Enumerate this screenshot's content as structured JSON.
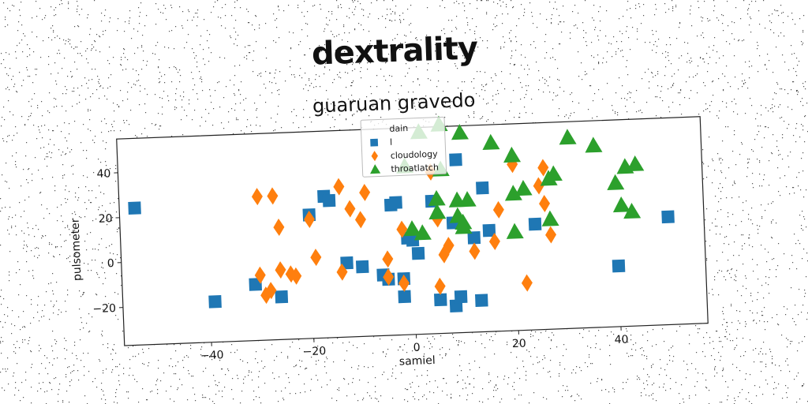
{
  "header": {
    "title": "dextrality"
  },
  "colors": {
    "dain": "#cccccc",
    "l": "#1f77b4",
    "cloudology": "#ff7f0e",
    "throatlatch": "#2ca02c"
  },
  "chart_data": {
    "type": "scatter",
    "title": "guaruan gravedo",
    "xlabel": "samiel",
    "ylabel": "pulsometer",
    "xlim": [
      -57,
      57
    ],
    "ylim": [
      -37,
      55
    ],
    "xticks": [
      -40,
      -20,
      0,
      20,
      40
    ],
    "yticks": [
      -20,
      0,
      20,
      40
    ],
    "xtick_labels": [
      "−40",
      "−20",
      "0",
      "20",
      "40"
    ],
    "ytick_labels": [
      "−20",
      "0",
      "20",
      "40"
    ],
    "grid": false,
    "legend_position": "top-center",
    "series": [
      {
        "name": "dain",
        "marker": "point",
        "x": [],
        "y": []
      },
      {
        "name": "l",
        "marker": "square",
        "x": [
          -54,
          -39,
          -31,
          -26,
          -20,
          -17,
          -16,
          -13,
          -10,
          -6,
          -5,
          -4,
          -3,
          -2,
          -2,
          -1,
          0,
          1,
          4,
          5,
          8,
          8,
          9,
          9,
          12,
          13,
          14,
          15,
          24,
          40,
          50
        ],
        "y": [
          24,
          -19,
          -12,
          -18,
          18,
          26,
          24,
          -4,
          -6,
          -10,
          -12,
          21,
          22,
          -20,
          -12,
          6,
          5,
          -1,
          22,
          -22,
          -25,
          12,
          40,
          -21,
          5,
          -23,
          27,
          8,
          10,
          -10,
          11
        ]
      },
      {
        "name": "cloudology",
        "marker": "diamond",
        "x": [
          -30,
          -30,
          -29,
          -28,
          -27,
          -26,
          -26,
          -24,
          -23,
          -20,
          -19,
          -14,
          -14,
          -12,
          -10,
          -9,
          -5,
          -5,
          -2,
          -2,
          4,
          5,
          5,
          6,
          7,
          12,
          16,
          17,
          20,
          22,
          25,
          26,
          26,
          27
        ],
        "y": [
          27,
          -8,
          -17,
          -15,
          27,
          13,
          -6,
          -8,
          -9,
          16,
          -1,
          30,
          -8,
          20,
          15,
          27,
          -3,
          -11,
          -14,
          10,
          35,
          -16,
          14,
          -2,
          2,
          -1,
          3,
          17,
          37,
          -16,
          27,
          19,
          35,
          5
        ]
      },
      {
        "name": "throatlatch",
        "marker": "triangle",
        "x": [
          -1,
          0,
          2,
          2,
          5,
          5,
          6,
          6,
          9,
          9,
          10,
          10,
          10,
          11,
          16,
          20,
          20,
          20,
          22,
          27,
          27,
          28,
          31,
          36,
          40,
          41,
          42,
          43,
          44
        ],
        "y": [
          38,
          10,
          8,
          53,
          23,
          17,
          36,
          56,
          15,
          22,
          10,
          12,
          52,
          22,
          47,
          24,
          41,
          7,
          26,
          12,
          30,
          32,
          48,
          44,
          27,
          17,
          34,
          14,
          35
        ]
      }
    ]
  }
}
